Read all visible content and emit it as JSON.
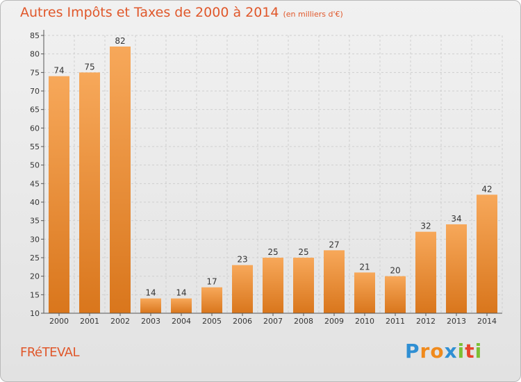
{
  "title": "Autres Impôts et Taxes de 2000 à 2014",
  "unit": "(en milliers d'€)",
  "town": "FRéTEVAL",
  "logo": {
    "text": "Proxiti",
    "letters": [
      {
        "ch": "P",
        "color": "#2f8fd3"
      },
      {
        "ch": "r",
        "color": "#f08a1c"
      },
      {
        "ch": "o",
        "color": "#f08a1c"
      },
      {
        "ch": "x",
        "color": "#2f8fd3"
      },
      {
        "ch": "i",
        "color": "#7cbf35"
      },
      {
        "ch": "t",
        "color": "#e8452c"
      },
      {
        "ch": "i",
        "color": "#7cbf35"
      }
    ]
  },
  "colors": {
    "title": "#e0572a",
    "bar_light": "#f7a85a",
    "bar_dark": "#d9761c"
  },
  "chart_data": {
    "type": "bar",
    "title": "Autres Impôts et Taxes de 2000 à 2014",
    "xlabel": "",
    "ylabel": "",
    "categories": [
      "2000",
      "2001",
      "2002",
      "2003",
      "2004",
      "2005",
      "2006",
      "2007",
      "2008",
      "2009",
      "2010",
      "2011",
      "2012",
      "2013",
      "2014"
    ],
    "values": [
      74,
      75,
      82,
      14,
      14,
      17,
      23,
      25,
      25,
      27,
      21,
      20,
      32,
      34,
      42
    ],
    "ylim": [
      10,
      85
    ],
    "yticks": [
      10,
      15,
      20,
      25,
      30,
      35,
      40,
      45,
      50,
      55,
      60,
      65,
      70,
      75,
      80,
      85
    ],
    "grid": true
  }
}
